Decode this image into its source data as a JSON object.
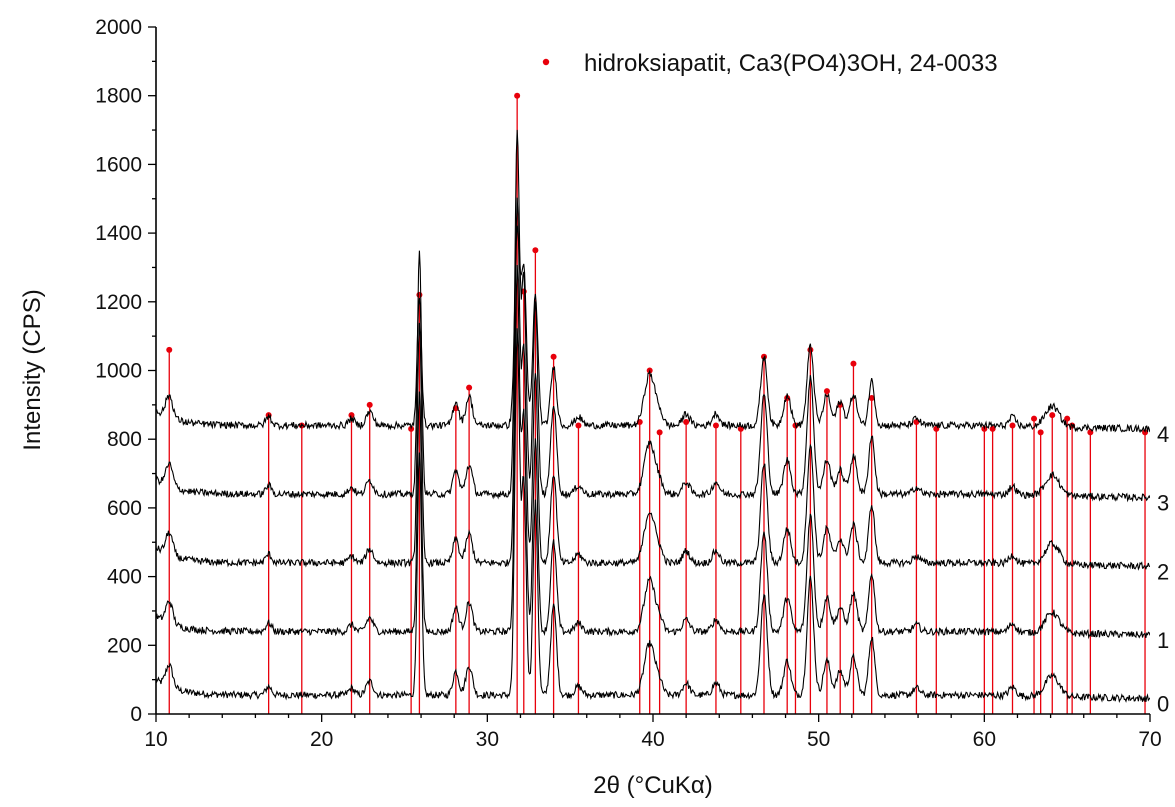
{
  "chart_data": {
    "type": "line",
    "xlabel": "2θ (°CuKα)",
    "ylabel": "Intensity (CPS)",
    "xlim": [
      10,
      70
    ],
    "ylim": [
      0,
      2000
    ],
    "x_ticks": [
      "10",
      "20",
      "30",
      "40",
      "50",
      "60",
      "70"
    ],
    "y_ticks": [
      "0",
      "200",
      "400",
      "600",
      "800",
      "1000",
      "1200",
      "1400",
      "1600",
      "1800",
      "2000"
    ],
    "grid": false,
    "legend_position": "top-right",
    "colors": {
      "trace": "#000000",
      "reference": "#e8000b",
      "axis": "#000000"
    },
    "reference": {
      "name": "hidroksiapatit, Ca3(PO4)3OH, 24-0033",
      "type": "stick",
      "points": [
        [
          10.8,
          1060
        ],
        [
          16.8,
          870
        ],
        [
          18.8,
          840
        ],
        [
          21.8,
          870
        ],
        [
          22.9,
          900
        ],
        [
          25.4,
          830
        ],
        [
          25.9,
          1220
        ],
        [
          28.1,
          890
        ],
        [
          28.9,
          950
        ],
        [
          31.8,
          1800
        ],
        [
          32.2,
          1230
        ],
        [
          32.9,
          1350
        ],
        [
          34.0,
          1040
        ],
        [
          35.5,
          840
        ],
        [
          39.2,
          850
        ],
        [
          39.8,
          1000
        ],
        [
          40.4,
          820
        ],
        [
          42.0,
          850
        ],
        [
          43.8,
          840
        ],
        [
          45.3,
          830
        ],
        [
          46.7,
          1040
        ],
        [
          48.1,
          920
        ],
        [
          48.6,
          840
        ],
        [
          49.5,
          1060
        ],
        [
          50.5,
          940
        ],
        [
          51.3,
          900
        ],
        [
          52.1,
          1020
        ],
        [
          53.2,
          920
        ],
        [
          55.9,
          850
        ],
        [
          57.1,
          830
        ],
        [
          60.0,
          830
        ],
        [
          60.5,
          830
        ],
        [
          61.7,
          840
        ],
        [
          63.0,
          860
        ],
        [
          63.4,
          820
        ],
        [
          64.1,
          870
        ],
        [
          65.0,
          860
        ],
        [
          65.3,
          840
        ],
        [
          66.4,
          820
        ],
        [
          69.7,
          820
        ]
      ]
    },
    "series": [
      {
        "name": "0",
        "baseline": 55,
        "offset": 0,
        "peaks": [
          [
            10.8,
            65,
            0.3
          ],
          [
            16.8,
            25,
            0.25
          ],
          [
            21.8,
            20,
            0.25
          ],
          [
            22.9,
            40,
            0.3
          ],
          [
            25.9,
            700,
            0.18
          ],
          [
            28.1,
            70,
            0.25
          ],
          [
            28.9,
            85,
            0.28
          ],
          [
            31.8,
            1050,
            0.2
          ],
          [
            32.2,
            620,
            0.2
          ],
          [
            32.9,
            560,
            0.2
          ],
          [
            34.0,
            260,
            0.25
          ],
          [
            35.5,
            25,
            0.3
          ],
          [
            39.8,
            150,
            0.45
          ],
          [
            40.4,
            30,
            0.3
          ],
          [
            42.0,
            35,
            0.3
          ],
          [
            43.8,
            35,
            0.3
          ],
          [
            46.7,
            290,
            0.28
          ],
          [
            48.1,
            100,
            0.3
          ],
          [
            49.5,
            340,
            0.28
          ],
          [
            50.5,
            100,
            0.3
          ],
          [
            51.3,
            70,
            0.3
          ],
          [
            52.1,
            110,
            0.3
          ],
          [
            53.2,
            170,
            0.25
          ],
          [
            55.9,
            20,
            0.3
          ],
          [
            61.7,
            25,
            0.3
          ],
          [
            64.1,
            60,
            0.6
          ]
        ],
        "label": "0"
      },
      {
        "name": "1",
        "baseline": 240,
        "offset": 200,
        "peaks": [
          [
            10.8,
            65,
            0.3
          ],
          [
            16.8,
            25,
            0.25
          ],
          [
            21.8,
            20,
            0.25
          ],
          [
            22.9,
            40,
            0.3
          ],
          [
            25.9,
            700,
            0.18
          ],
          [
            28.1,
            70,
            0.25
          ],
          [
            28.9,
            85,
            0.28
          ],
          [
            31.8,
            1050,
            0.2
          ],
          [
            32.2,
            620,
            0.2
          ],
          [
            32.9,
            560,
            0.2
          ],
          [
            34.0,
            260,
            0.25
          ],
          [
            35.5,
            25,
            0.3
          ],
          [
            39.8,
            150,
            0.45
          ],
          [
            40.4,
            30,
            0.3
          ],
          [
            42.0,
            35,
            0.3
          ],
          [
            43.8,
            35,
            0.3
          ],
          [
            46.7,
            290,
            0.28
          ],
          [
            48.1,
            100,
            0.3
          ],
          [
            49.5,
            340,
            0.28
          ],
          [
            50.5,
            100,
            0.3
          ],
          [
            51.3,
            70,
            0.3
          ],
          [
            52.1,
            110,
            0.3
          ],
          [
            53.2,
            170,
            0.25
          ],
          [
            55.9,
            20,
            0.3
          ],
          [
            61.7,
            25,
            0.3
          ],
          [
            64.1,
            60,
            0.6
          ]
        ],
        "label": "1"
      },
      {
        "name": "2",
        "baseline": 440,
        "offset": 400,
        "peaks": [
          [
            10.8,
            65,
            0.3
          ],
          [
            16.8,
            25,
            0.25
          ],
          [
            21.8,
            20,
            0.25
          ],
          [
            22.9,
            40,
            0.3
          ],
          [
            25.9,
            700,
            0.18
          ],
          [
            28.1,
            70,
            0.25
          ],
          [
            28.9,
            85,
            0.28
          ],
          [
            31.8,
            1050,
            0.2
          ],
          [
            32.2,
            620,
            0.2
          ],
          [
            32.9,
            560,
            0.2
          ],
          [
            34.0,
            260,
            0.25
          ],
          [
            35.5,
            25,
            0.3
          ],
          [
            39.8,
            150,
            0.45
          ],
          [
            40.4,
            30,
            0.3
          ],
          [
            42.0,
            35,
            0.3
          ],
          [
            43.8,
            35,
            0.3
          ],
          [
            46.7,
            290,
            0.28
          ],
          [
            48.1,
            100,
            0.3
          ],
          [
            49.5,
            340,
            0.28
          ],
          [
            50.5,
            100,
            0.3
          ],
          [
            51.3,
            70,
            0.3
          ],
          [
            52.1,
            110,
            0.3
          ],
          [
            53.2,
            170,
            0.25
          ],
          [
            55.9,
            20,
            0.3
          ],
          [
            61.7,
            25,
            0.3
          ],
          [
            64.1,
            60,
            0.6
          ]
        ],
        "label": "2"
      },
      {
        "name": "3",
        "baseline": 640,
        "offset": 600,
        "peaks": [
          [
            10.8,
            65,
            0.3
          ],
          [
            16.8,
            25,
            0.25
          ],
          [
            21.8,
            20,
            0.25
          ],
          [
            22.9,
            40,
            0.3
          ],
          [
            25.9,
            700,
            0.18
          ],
          [
            28.1,
            70,
            0.25
          ],
          [
            28.9,
            85,
            0.28
          ],
          [
            31.8,
            1050,
            0.2
          ],
          [
            32.2,
            620,
            0.2
          ],
          [
            32.9,
            560,
            0.2
          ],
          [
            34.0,
            260,
            0.25
          ],
          [
            35.5,
            25,
            0.3
          ],
          [
            39.8,
            150,
            0.45
          ],
          [
            40.4,
            30,
            0.3
          ],
          [
            42.0,
            35,
            0.3
          ],
          [
            43.8,
            35,
            0.3
          ],
          [
            46.7,
            290,
            0.28
          ],
          [
            48.1,
            100,
            0.3
          ],
          [
            49.5,
            340,
            0.28
          ],
          [
            50.5,
            100,
            0.3
          ],
          [
            51.3,
            70,
            0.3
          ],
          [
            52.1,
            110,
            0.3
          ],
          [
            53.2,
            170,
            0.25
          ],
          [
            55.9,
            20,
            0.3
          ],
          [
            61.7,
            25,
            0.3
          ],
          [
            64.1,
            60,
            0.6
          ]
        ],
        "label": "3"
      },
      {
        "name": "4",
        "baseline": 840,
        "offset": 800,
        "peaks": [
          [
            10.8,
            65,
            0.3
          ],
          [
            16.8,
            25,
            0.25
          ],
          [
            21.8,
            20,
            0.25
          ],
          [
            22.9,
            40,
            0.3
          ],
          [
            25.9,
            380,
            0.18
          ],
          [
            28.1,
            70,
            0.25
          ],
          [
            28.9,
            85,
            0.28
          ],
          [
            31.8,
            560,
            0.22
          ],
          [
            32.2,
            450,
            0.22
          ],
          [
            32.9,
            380,
            0.22
          ],
          [
            34.0,
            170,
            0.25
          ],
          [
            35.5,
            25,
            0.3
          ],
          [
            39.8,
            150,
            0.45
          ],
          [
            40.4,
            30,
            0.3
          ],
          [
            42.0,
            35,
            0.3
          ],
          [
            43.8,
            35,
            0.3
          ],
          [
            46.7,
            200,
            0.28
          ],
          [
            48.1,
            90,
            0.3
          ],
          [
            49.5,
            230,
            0.28
          ],
          [
            50.5,
            90,
            0.3
          ],
          [
            51.3,
            70,
            0.3
          ],
          [
            52.1,
            90,
            0.3
          ],
          [
            53.2,
            130,
            0.25
          ],
          [
            55.9,
            20,
            0.3
          ],
          [
            61.7,
            25,
            0.3
          ],
          [
            64.1,
            60,
            0.6
          ]
        ],
        "label": "4"
      }
    ]
  }
}
